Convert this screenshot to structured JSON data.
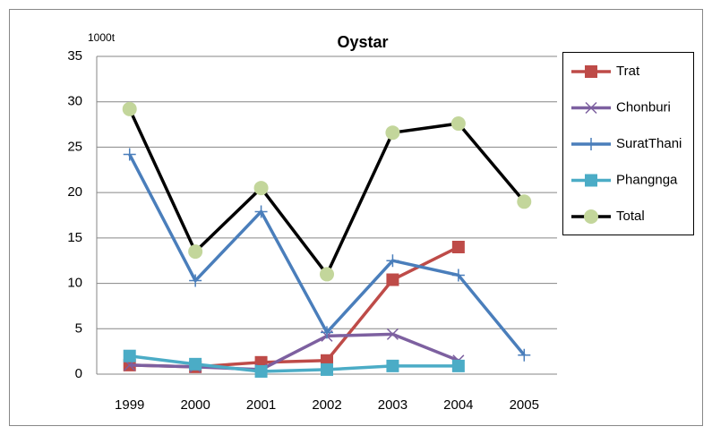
{
  "chart_data": {
    "type": "line",
    "title": "Oystar",
    "y_unit": "1000t",
    "categories": [
      "1999",
      "2000",
      "2001",
      "2002",
      "2003",
      "2004",
      "2005"
    ],
    "series": [
      {
        "name": "Trat",
        "color": "#be4b48",
        "marker": "square",
        "values": [
          1.0,
          0.8,
          1.3,
          1.5,
          10.4,
          14.0,
          null
        ]
      },
      {
        "name": "Chonburi",
        "color": "#7d60a0",
        "marker": "x",
        "values": [
          1.0,
          0.8,
          0.5,
          4.2,
          4.4,
          1.5,
          null
        ]
      },
      {
        "name": "SuratThani",
        "color": "#4a7ebb",
        "marker": "plus",
        "values": [
          24.2,
          10.3,
          17.9,
          4.6,
          12.5,
          10.9,
          2.1
        ]
      },
      {
        "name": "Phangnga",
        "color": "#4bacc6",
        "marker": "square",
        "values": [
          2.0,
          1.1,
          0.3,
          0.5,
          0.9,
          0.9,
          null
        ]
      },
      {
        "name": "Total",
        "color": "#000000",
        "marker": "circle",
        "marker_color": "#c3d69b",
        "values": [
          29.2,
          13.5,
          20.5,
          11.0,
          26.6,
          27.6,
          19.0
        ]
      }
    ],
    "ylim": [
      0,
      35
    ],
    "yticks": [
      0,
      5,
      10,
      15,
      20,
      25,
      30,
      35
    ],
    "grid": true,
    "legend": "right"
  }
}
